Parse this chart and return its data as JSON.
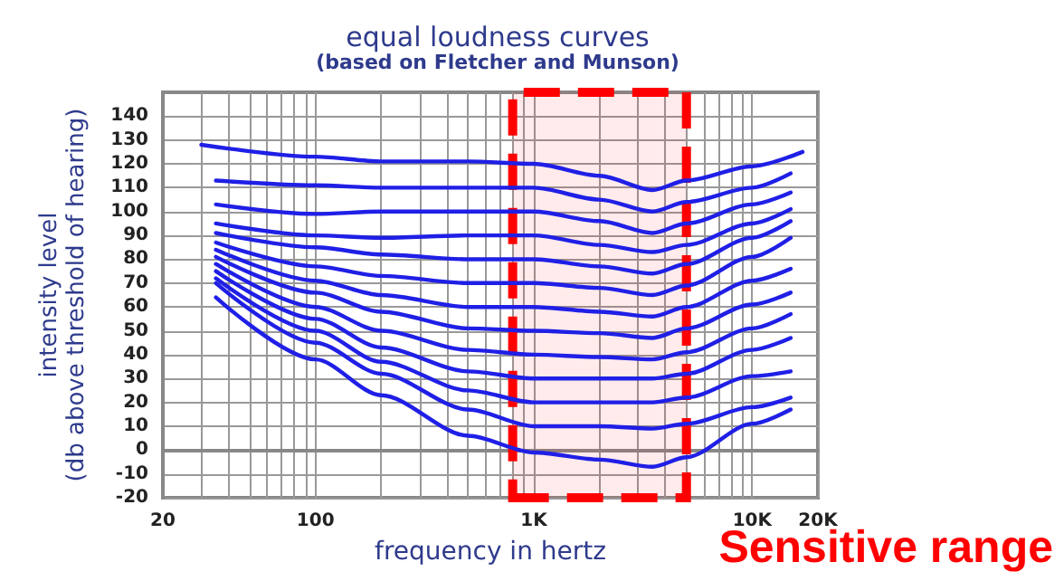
{
  "chart_data": {
    "type": "line",
    "title": "equal loudness curves",
    "subtitle": "(based on Fletcher and Munson)",
    "xlabel": "frequency in hertz",
    "ylabel": "intensity level\n(db above threshold of hearing)",
    "log": "x",
    "grid": true,
    "marker": "none",
    "line_style": "solid",
    "xlim": [
      20,
      20000
    ],
    "ylim": [
      -20,
      150
    ],
    "xticks": [
      20,
      {
        "value": 30,
        "label": null
      },
      {
        "value": 40,
        "label": null
      },
      {
        "value": 50,
        "label": null
      },
      {
        "value": 60,
        "label": null
      },
      {
        "value": 70,
        "label": null
      },
      {
        "value": 80,
        "label": null
      },
      {
        "value": 90,
        "label": null
      },
      100,
      {
        "value": 200,
        "label": null
      },
      {
        "value": 300,
        "label": null
      },
      {
        "value": 400,
        "label": null
      },
      {
        "value": 500,
        "label": null
      },
      {
        "value": 600,
        "label": null
      },
      {
        "value": 700,
        "label": null
      },
      {
        "value": 800,
        "label": null
      },
      {
        "value": 900,
        "label": null
      },
      {
        "value": 1000,
        "label": "1K"
      },
      {
        "value": 2000,
        "label": null
      },
      {
        "value": 3000,
        "label": null
      },
      {
        "value": 4000,
        "label": null
      },
      {
        "value": 5000,
        "label": null
      },
      {
        "value": 6000,
        "label": null
      },
      {
        "value": 7000,
        "label": null
      },
      {
        "value": 8000,
        "label": null
      },
      {
        "value": 9000,
        "label": null
      },
      {
        "value": 10000,
        "label": "10K"
      },
      {
        "value": 20000,
        "label": "20K"
      }
    ],
    "yticks": [
      -20,
      -10,
      0,
      10,
      20,
      30,
      40,
      50,
      60,
      70,
      80,
      90,
      100,
      110,
      120,
      130,
      140
    ],
    "x": [
      35,
      100,
      200,
      500,
      1000,
      2000,
      3500,
      5000,
      10000,
      15000
    ],
    "series": [
      {
        "color": "#1f1fe6",
        "x": [
          30,
          100,
          200,
          500,
          1000,
          2000,
          3500,
          5000,
          10000,
          17000
        ],
        "values": [
          128,
          123,
          121,
          121,
          120,
          115,
          109,
          113,
          119,
          125
        ]
      },
      {
        "color": "#1f1fe6",
        "values": [
          113,
          111,
          110,
          110,
          110,
          105,
          100,
          104,
          110,
          116
        ]
      },
      {
        "color": "#1f1fe6",
        "values": [
          103,
          99,
          100,
          100,
          100,
          96,
          91,
          95,
          103,
          108
        ]
      },
      {
        "color": "#1f1fe6",
        "values": [
          95,
          90,
          89,
          90,
          90,
          86,
          83,
          86,
          95,
          101
        ]
      },
      {
        "color": "#1f1fe6",
        "values": [
          91,
          85,
          82,
          80,
          80,
          77,
          74,
          78,
          89,
          96
        ]
      },
      {
        "color": "#1f1fe6",
        "values": [
          87,
          77,
          73,
          70,
          70,
          68,
          65,
          69,
          81,
          89
        ]
      },
      {
        "color": "#1f1fe6",
        "values": [
          84,
          71,
          65,
          60,
          60,
          58,
          56,
          60,
          71,
          76
        ]
      },
      {
        "color": "#1f1fe6",
        "values": [
          81,
          66,
          58,
          51,
          50,
          49,
          47,
          51,
          61,
          66
        ]
      },
      {
        "color": "#1f1fe6",
        "values": [
          78,
          60,
          50,
          42,
          40,
          39,
          38,
          41,
          51,
          57
        ]
      },
      {
        "color": "#1f1fe6",
        "values": [
          75,
          55,
          43,
          33,
          30,
          30,
          30,
          32,
          42,
          47
        ]
      },
      {
        "color": "#1f1fe6",
        "values": [
          72,
          50,
          37,
          25,
          20,
          20,
          20,
          22,
          31,
          33
        ]
      },
      {
        "color": "#1f1fe6",
        "values": [
          70,
          45,
          32,
          17,
          10,
          10,
          9,
          11,
          18,
          22
        ]
      },
      {
        "color": "#1f1fe6",
        "values": [
          64,
          38,
          23,
          6,
          -1,
          -4,
          -7,
          -3,
          11,
          17
        ]
      }
    ],
    "bands": [
      {
        "axis": "x",
        "from": 800,
        "to": 5000,
        "label": "Sensitive range",
        "color": "#ff0000"
      }
    ]
  }
}
